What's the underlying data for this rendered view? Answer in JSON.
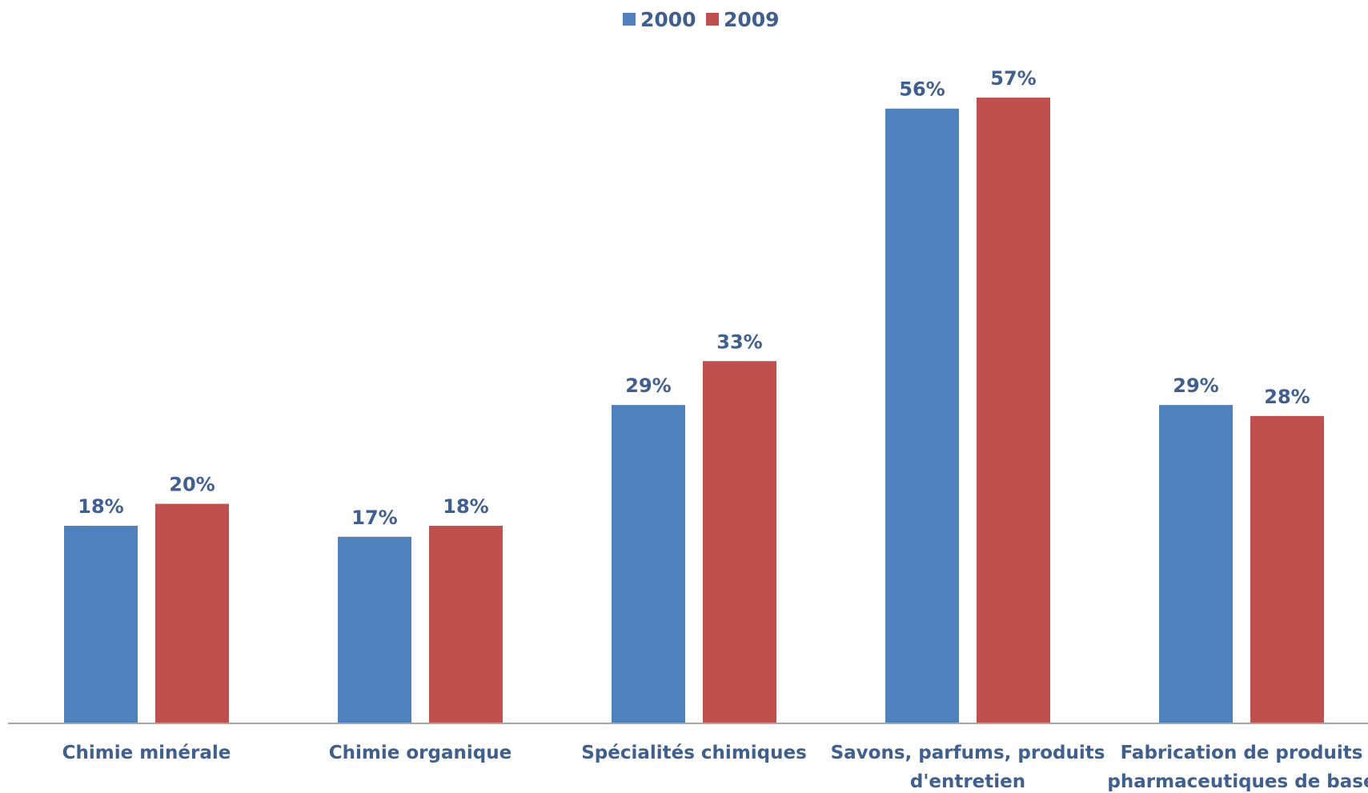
{
  "chart_data": {
    "type": "bar",
    "categories": [
      [
        "Chimie minérale"
      ],
      [
        "Chimie organique"
      ],
      [
        "Spécialités chimiques"
      ],
      [
        "Savons, parfums, produits",
        "d'entretien"
      ],
      [
        "Fabrication de produits",
        "pharmaceutiques de base"
      ]
    ],
    "series": [
      {
        "name": "2000",
        "color": "#4F81BD",
        "values": [
          18,
          17,
          29,
          56,
          29
        ],
        "labels": [
          "18%",
          "17%",
          "29%",
          "56%",
          "29%"
        ]
      },
      {
        "name": "2009",
        "color": "#C0504D",
        "values": [
          20,
          18,
          33,
          57,
          28
        ],
        "labels": [
          "20%",
          "18%",
          "33%",
          "57%",
          "28%"
        ]
      }
    ],
    "ylim": [
      0,
      60
    ],
    "grid": false,
    "legend": "top-center",
    "axis_color": "#A6A6A6",
    "label_color": "#3F5F8F"
  }
}
